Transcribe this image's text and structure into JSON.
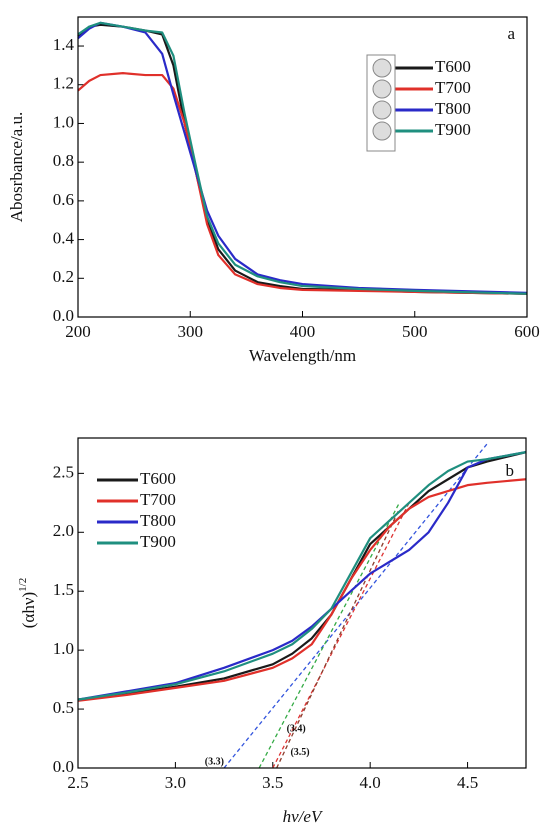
{
  "chart_data": [
    {
      "type": "line",
      "annotation": "a",
      "xlabel": "Wavelength/nm",
      "ylabel": "Abosrbance/a.u.",
      "x": [
        200,
        210,
        220,
        240,
        260,
        275,
        285,
        295,
        305,
        315,
        325,
        340,
        360,
        380,
        400,
        450,
        500,
        600
      ],
      "series": [
        {
          "name": "T600",
          "color": "#1a1a1a",
          "values": [
            1.45,
            1.5,
            1.51,
            1.5,
            1.48,
            1.46,
            1.3,
            1.0,
            0.75,
            0.5,
            0.35,
            0.24,
            0.18,
            0.16,
            0.145,
            0.14,
            0.13,
            0.12
          ]
        },
        {
          "name": "T700",
          "color": "#e0302a",
          "values": [
            1.17,
            1.22,
            1.25,
            1.26,
            1.25,
            1.25,
            1.18,
            1.0,
            0.75,
            0.48,
            0.32,
            0.22,
            0.17,
            0.15,
            0.14,
            0.135,
            0.13,
            0.12
          ]
        },
        {
          "name": "T800",
          "color": "#2a2ac8",
          "values": [
            1.44,
            1.49,
            1.52,
            1.5,
            1.47,
            1.36,
            1.15,
            0.95,
            0.75,
            0.55,
            0.42,
            0.3,
            0.22,
            0.19,
            0.17,
            0.15,
            0.14,
            0.125
          ]
        },
        {
          "name": "T900",
          "color": "#1f8f7f",
          "values": [
            1.46,
            1.5,
            1.52,
            1.5,
            1.48,
            1.47,
            1.35,
            1.05,
            0.78,
            0.52,
            0.38,
            0.27,
            0.21,
            0.18,
            0.16,
            0.145,
            0.135,
            0.12
          ]
        }
      ],
      "xlim": [
        200,
        600
      ],
      "xticks": [
        200,
        300,
        400,
        500,
        600
      ],
      "ylim": [
        0,
        1.55
      ],
      "yticks": [
        {
          "value": 0,
          "label": "0.0"
        },
        0.2,
        0.4,
        0.6,
        0.8,
        {
          "value": 1,
          "label": "1.0"
        },
        1.2,
        1.4
      ],
      "legend": "upper right"
    },
    {
      "type": "line",
      "annotation": "b",
      "xlabel": "hν/eV",
      "ylabel": "(αhν)",
      "ylabel_superscript": "1/2",
      "x": [
        2.5,
        2.75,
        3.0,
        3.25,
        3.5,
        3.6,
        3.7,
        3.8,
        3.9,
        4.0,
        4.1,
        4.2,
        4.3,
        4.4,
        4.5,
        4.6,
        4.8
      ],
      "series": [
        {
          "name": "T600",
          "color": "#1a1a1a",
          "values": [
            0.58,
            0.63,
            0.69,
            0.76,
            0.88,
            0.97,
            1.1,
            1.3,
            1.6,
            1.9,
            2.05,
            2.2,
            2.35,
            2.45,
            2.55,
            2.6,
            2.68
          ]
        },
        {
          "name": "T700",
          "color": "#e0302a",
          "values": [
            0.57,
            0.62,
            0.68,
            0.74,
            0.85,
            0.93,
            1.05,
            1.3,
            1.6,
            1.85,
            2.05,
            2.2,
            2.3,
            2.35,
            2.4,
            2.42,
            2.45
          ]
        },
        {
          "name": "T800",
          "color": "#2a2ac8",
          "values": [
            0.58,
            0.65,
            0.72,
            0.85,
            1.0,
            1.08,
            1.2,
            1.35,
            1.5,
            1.65,
            1.75,
            1.85,
            2.0,
            2.25,
            2.55,
            2.62,
            2.68
          ]
        },
        {
          "name": "T900",
          "color": "#1f8f7f",
          "values": [
            0.58,
            0.64,
            0.71,
            0.82,
            0.97,
            1.05,
            1.18,
            1.35,
            1.65,
            1.95,
            2.1,
            2.25,
            2.4,
            2.52,
            2.6,
            2.62,
            2.68
          ]
        }
      ],
      "tangents": [
        {
          "color": "#3355dd",
          "x": [
            3.25,
            4.6
          ],
          "y": [
            0,
            2.75
          ]
        },
        {
          "color": "#33aa44",
          "x": [
            3.43,
            4.15
          ],
          "y": [
            0,
            2.25
          ]
        },
        {
          "color": "#dd3333",
          "x": [
            3.5,
            4.2
          ],
          "y": [
            0,
            2.25
          ]
        },
        {
          "color": "#8b3a2a",
          "x": [
            3.52,
            4.15
          ],
          "y": [
            0,
            2.2
          ]
        }
      ],
      "notes": [
        {
          "text": "(3.3)",
          "x": 3.2,
          "y": 0.05
        },
        {
          "text": "(3.4)",
          "x": 3.62,
          "y": 0.33
        },
        {
          "text": "(3.5)",
          "x": 3.64,
          "y": 0.13
        }
      ],
      "xlim": [
        2.5,
        4.8
      ],
      "xticks": [
        2.5,
        {
          "value": 3,
          "label": "3.0"
        },
        3.5,
        {
          "value": 4,
          "label": "4.0"
        },
        4.5
      ],
      "ylim": [
        0,
        2.8
      ],
      "yticks": [
        {
          "value": 0,
          "label": "0.0"
        },
        0.5,
        {
          "value": 1,
          "label": "1.0"
        },
        1.5,
        {
          "value": 2,
          "label": "2.0"
        },
        2.5
      ],
      "legend": "upper left"
    }
  ]
}
